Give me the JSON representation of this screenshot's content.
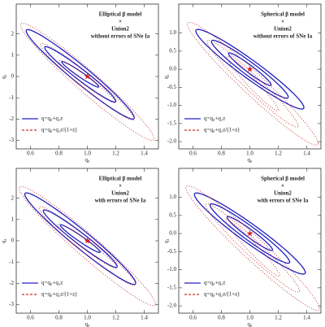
{
  "chart_data": [
    {
      "type": "contour",
      "title": [
        "Elliptical β model",
        "×",
        "Union2",
        "without errors of SNe Ia"
      ],
      "xlabel": "q₀",
      "ylabel": "q₁",
      "xlim": [
        0.5,
        1.5
      ],
      "xticks": [
        0.6,
        0.8,
        {
          "value": 1.0,
          "label": "1.0"
        },
        1.2,
        1.4
      ],
      "ylim": [
        -3.4,
        3.4
      ],
      "yticks": [
        -3,
        -2,
        -1,
        0,
        1,
        2
      ],
      "series": [
        {
          "name": "q=q₀+q₁z",
          "color": "#2020c0",
          "linestyle": "solid",
          "center": [
            0.95,
            0.1
          ],
          "contours": [
            {
              "x_halfwidth": 0.13,
              "y_halfwidth": 0.6,
              "correlation": -0.97
            },
            {
              "x_halfwidth": 0.25,
              "y_halfwidth": 1.3,
              "correlation": -0.97
            },
            {
              "x_halfwidth": 0.38,
              "y_halfwidth": 2.1,
              "correlation": -0.97
            }
          ]
        },
        {
          "name": "q=q₀+q₁z/(1+z)",
          "color": "#c03030",
          "linestyle": "dotted",
          "center": [
            1.0,
            -0.25
          ],
          "contours": [
            {
              "x_halfwidth": 0.2,
              "y_halfwidth": 1.0,
              "correlation": -0.97
            },
            {
              "x_halfwidth": 0.33,
              "y_halfwidth": 1.8,
              "correlation": -0.97
            },
            {
              "x_halfwidth": 0.47,
              "y_halfwidth": 2.75,
              "correlation": -0.97
            }
          ]
        }
      ],
      "best_fit": {
        "x": 1.0,
        "y": 0,
        "color": "#e02020",
        "marker": "star"
      }
    },
    {
      "type": "contour",
      "title": [
        "Spherical β model",
        "×",
        "Union2",
        "without errors of SNe Ia"
      ],
      "xlabel": "q₀",
      "ylabel": "q₁",
      "xlim": [
        0.5,
        1.5
      ],
      "xticks": [
        0.6,
        0.8,
        {
          "value": 1.0,
          "label": "1.0"
        },
        1.2,
        1.4
      ],
      "ylim": [
        -2.2,
        1.8
      ],
      "yticks": [
        {
          "value": -2.0,
          "label": "-2.0"
        },
        -1.5,
        {
          "value": -1.0,
          "label": "-1.0"
        },
        -0.5,
        {
          "value": 0.0,
          "label": "0.0"
        },
        0.5,
        {
          "value": 1.0,
          "label": "1.0"
        }
      ],
      "series": [
        {
          "name": "q=q₀+q₁z",
          "color": "#2020c0",
          "linestyle": "solid",
          "center": [
            1.0,
            0.0
          ],
          "contours": [
            {
              "x_halfwidth": 0.15,
              "y_halfwidth": 0.45,
              "correlation": -0.96
            },
            {
              "x_halfwidth": 0.27,
              "y_halfwidth": 0.8,
              "correlation": -0.96
            },
            {
              "x_halfwidth": 0.38,
              "y_halfwidth": 1.1,
              "correlation": -0.96
            }
          ]
        },
        {
          "name": "q=q₀+q₁z/(1+z)",
          "color": "#c03030",
          "linestyle": "dotted",
          "center": [
            1.02,
            -0.4
          ],
          "contours": [
            {
              "x_halfwidth": 0.18,
              "y_halfwidth": 0.75,
              "correlation": -0.97
            },
            {
              "x_halfwidth": 0.32,
              "y_halfwidth": 1.2,
              "correlation": -0.97
            },
            {
              "x_halfwidth": 0.46,
              "y_halfwidth": 1.7,
              "correlation": -0.97
            }
          ]
        }
      ],
      "best_fit": {
        "x": 1.0,
        "y": 0.0,
        "color": "#e02020",
        "marker": "star"
      }
    },
    {
      "type": "contour",
      "title": [
        "Elliptical β model",
        "×",
        "Union2",
        "with errors of SNe Ia"
      ],
      "xlabel": "q₀",
      "ylabel": "q₁",
      "xlim": [
        0.5,
        1.5
      ],
      "xticks": [
        0.6,
        0.8,
        {
          "value": 1.0,
          "label": "1.0"
        },
        1.2,
        1.4
      ],
      "ylim": [
        -3.4,
        3.4
      ],
      "yticks": [
        -3,
        -2,
        -1,
        0,
        1,
        2
      ],
      "series": [
        {
          "name": "q=q₀+q₁z",
          "color": "#2020c0",
          "linestyle": "solid",
          "center": [
            0.95,
            0.1
          ],
          "contours": [
            {
              "x_halfwidth": 0.14,
              "y_halfwidth": 0.65,
              "correlation": -0.97
            },
            {
              "x_halfwidth": 0.26,
              "y_halfwidth": 1.35,
              "correlation": -0.97
            },
            {
              "x_halfwidth": 0.39,
              "y_halfwidth": 2.15,
              "correlation": -0.97
            }
          ]
        },
        {
          "name": "q=q₀+q₁z/(1+z)",
          "color": "#c03030",
          "linestyle": "dotted",
          "center": [
            1.0,
            -0.25
          ],
          "contours": [
            {
              "x_halfwidth": 0.21,
              "y_halfwidth": 1.05,
              "correlation": -0.97
            },
            {
              "x_halfwidth": 0.34,
              "y_halfwidth": 1.85,
              "correlation": -0.97
            },
            {
              "x_halfwidth": 0.48,
              "y_halfwidth": 2.8,
              "correlation": -0.97
            }
          ]
        }
      ],
      "best_fit": {
        "x": 1.0,
        "y": 0,
        "color": "#e02020",
        "marker": "star"
      }
    },
    {
      "type": "contour",
      "title": [
        "Spherical β model",
        "×",
        "Union2",
        "with errors of SNe Ia"
      ],
      "xlabel": "q₀",
      "ylabel": "q₁",
      "xlim": [
        0.5,
        1.5
      ],
      "xticks": [
        0.6,
        0.8,
        {
          "value": 1.0,
          "label": "1.0"
        },
        1.2,
        1.4
      ],
      "ylim": [
        -2.2,
        1.8
      ],
      "yticks": [
        {
          "value": -2.0,
          "label": "-2.0"
        },
        -1.5,
        {
          "value": -1.0,
          "label": "-1.0"
        },
        -0.5,
        {
          "value": 0.0,
          "label": "0.0"
        },
        0.5,
        {
          "value": 1.0,
          "label": "1.0"
        }
      ],
      "series": [
        {
          "name": "q=q₀+q₁z",
          "color": "#2020c0",
          "linestyle": "solid",
          "center": [
            1.0,
            0.0
          ],
          "contours": [
            {
              "x_halfwidth": 0.16,
              "y_halfwidth": 0.47,
              "correlation": -0.96
            },
            {
              "x_halfwidth": 0.28,
              "y_halfwidth": 0.82,
              "correlation": -0.96
            },
            {
              "x_halfwidth": 0.39,
              "y_halfwidth": 1.12,
              "correlation": -0.96
            }
          ]
        },
        {
          "name": "q=q₀+q₁z/(1+z)",
          "color": "#c03030",
          "linestyle": "dotted",
          "center": [
            1.02,
            -0.4
          ],
          "contours": [
            {
              "x_halfwidth": 0.19,
              "y_halfwidth": 0.78,
              "correlation": -0.97
            },
            {
              "x_halfwidth": 0.33,
              "y_halfwidth": 1.22,
              "correlation": -0.97
            },
            {
              "x_halfwidth": 0.47,
              "y_halfwidth": 1.72,
              "correlation": -0.97
            }
          ]
        }
      ],
      "best_fit": {
        "x": 1.0,
        "y": 0.0,
        "color": "#e02020",
        "marker": "star"
      }
    }
  ]
}
